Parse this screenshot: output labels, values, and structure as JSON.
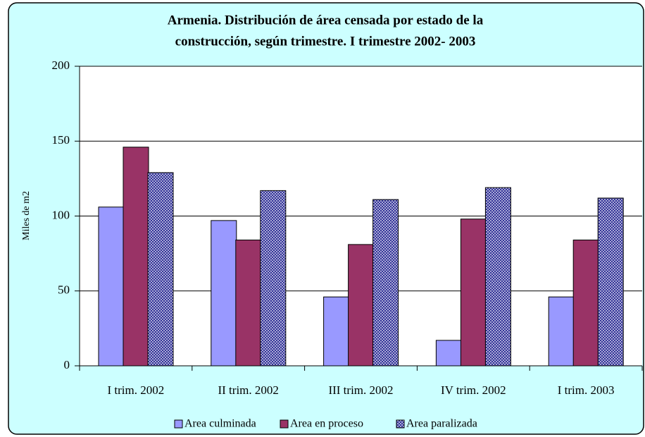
{
  "chart_data": {
    "type": "bar",
    "title": [
      "Armenia.  Distribución de área censada por estado de la",
      "construcción, según trimestre.  I trimestre 2002- 2003"
    ],
    "y_label": "Miles de m2",
    "categories": [
      "I trim. 2002",
      "II trim. 2002",
      "III trim. 2002",
      "IV trim. 2002",
      "I trim. 2003"
    ],
    "series": [
      {
        "name": "Area culminada",
        "color": "#9999ff",
        "values": [
          106,
          97,
          46,
          17,
          46
        ]
      },
      {
        "name": "Area en proceso",
        "color": "#993366",
        "values": [
          146,
          84,
          81,
          98,
          84
        ]
      },
      {
        "name": "Area paralizada",
        "color": "#333399",
        "pattern": "dots",
        "values": [
          129,
          117,
          111,
          119,
          112
        ]
      }
    ],
    "ylim": [
      0,
      200
    ],
    "yticks": [
      0,
      50,
      100,
      150,
      200
    ],
    "grid": true,
    "legend": "bottom"
  }
}
